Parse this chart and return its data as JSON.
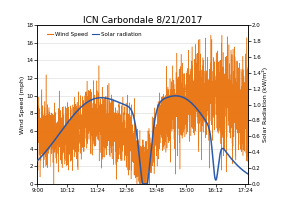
{
  "title": "ICN Carbondale 8/21/2017",
  "ylabel_left": "Wind Speed (mph)",
  "ylabel_right": "Solar Radiation (kW/m²)",
  "x_start_minutes": 540,
  "x_end_minutes": 1050,
  "x_ticks_labels": [
    "9:00",
    "10:12",
    "11:24",
    "12:36",
    "13:48",
    "15:00",
    "16:12",
    "17:24"
  ],
  "x_ticks_minutes": [
    540,
    612,
    684,
    756,
    828,
    900,
    972,
    1044
  ],
  "ylim_left": [
    0,
    18
  ],
  "ylim_right": [
    0.0,
    2.0
  ],
  "yticks_left": [
    0,
    2,
    4,
    6,
    8,
    10,
    12,
    14,
    16,
    18
  ],
  "yticks_right": [
    0.0,
    0.2,
    0.4,
    0.6,
    0.8,
    1.0,
    1.2,
    1.4,
    1.6,
    1.8,
    2.0
  ],
  "wind_color": "#E8720C",
  "solar_color": "#2255AA",
  "background_color": "#FFFFFF",
  "legend_wind": "Wind Speed",
  "legend_solar": "Solar radiation",
  "title_fontsize": 6.5,
  "label_fontsize": 4.5,
  "tick_fontsize": 4.0,
  "legend_fontsize": 4.0
}
